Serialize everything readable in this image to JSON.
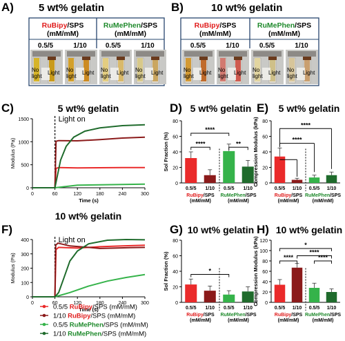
{
  "colors": {
    "red_light": "#ea2a2a",
    "red_dark": "#8b1a1a",
    "green_light": "#35b34a",
    "green_dark": "#1f6b2c",
    "pale_red": "#e88a86",
    "pale_green": "#7fd07a",
    "frame": "#26456e",
    "red_text": "#e01b1b",
    "green_text": "#1f8a2c"
  },
  "panels": {
    "A": {
      "label": "A)",
      "title": "5 wt% gelatin",
      "headers": [
        {
          "dye": "RuBipy",
          "rest": "/SPS",
          "unit": "(mM/mM)"
        },
        {
          "dye": "RuMePhen",
          "rest": "/SPS",
          "unit": "(mM/mM)"
        }
      ],
      "ratios": [
        "0.5/5",
        "1/10",
        "0.5/5",
        "1/10"
      ],
      "photo_labels": {
        "no_light": "No light",
        "light": "Light"
      }
    },
    "B": {
      "label": "B)",
      "title": "10 wt% gelatin",
      "headers": [
        {
          "dye": "RuBipy",
          "rest": "/SPS",
          "unit": "(mM/mM)"
        },
        {
          "dye": "RuMePhen",
          "rest": "/SPS",
          "unit": "(mM/mM)"
        }
      ],
      "ratios": [
        "0.5/5",
        "1/10",
        "0.5/5",
        "1/10"
      ],
      "photo_labels": {
        "no_light": "No light",
        "light": "Light"
      }
    },
    "C": {
      "label": "C)",
      "title": "5 wt% gelatin",
      "annotation": "Light on"
    },
    "D": {
      "label": "D)",
      "title": "5 wt% gelatin",
      "sig_top": "****",
      "sig_left": "****",
      "sig_right": "**"
    },
    "E": {
      "label": "E)",
      "title": "5 wt% gelatin",
      "sig1": "****",
      "sig2": "****"
    },
    "F": {
      "label": "F)",
      "title": "10 wt% gelatin",
      "annotation": "Light on"
    },
    "G": {
      "label": "G)",
      "title": "10 wt% gelatin",
      "sig1": "*"
    },
    "H": {
      "label": "H)",
      "title": "10 wt% gelatin",
      "sig_top": "*",
      "sig_mid": "****",
      "sig_l": "****",
      "sig_r": "****"
    }
  },
  "legend": [
    {
      "ratio": "0.5/5",
      "dye": "RuBipy",
      "rest": "/SPS (mM/mM)",
      "color": "#ea2a2a"
    },
    {
      "ratio": "1/10",
      "dye": "RuBipy",
      "rest": "/SPS (mM/mM)",
      "color": "#8b1a1a"
    },
    {
      "ratio": "0.5/5",
      "dye": "RuMePhen",
      "rest": "/SPS (mM/mM)",
      "color": "#35b34a"
    },
    {
      "ratio": "1/10",
      "dye": "RuMePhen",
      "rest": "/SPS (mM/mM)",
      "color": "#1f6b2c"
    }
  ],
  "group_labels": [
    {
      "dye": "RuBipy",
      "rest": "/SPS",
      "unit": "(mM/mM)"
    },
    {
      "dye": "RuMePhen",
      "rest": "/SPS",
      "unit": "(mM/mM)"
    }
  ],
  "chart_data": [
    {
      "panel": "C",
      "type": "line",
      "title": "5 wt% gelatin",
      "xlabel": "Time (s)",
      "ylabel": "Modulus (Pa)",
      "xlim": [
        0,
        300
      ],
      "ylim": [
        0,
        1500
      ],
      "xticks": [
        0,
        60,
        120,
        180,
        240,
        300
      ],
      "yticks": [
        0,
        500,
        1000,
        1500
      ],
      "series": [
        {
          "name": "0.5/5 RuBipy/SPS (mM/mM)",
          "color": "#ea2a2a",
          "points": [
            [
              0,
              0
            ],
            [
              60,
              0
            ],
            [
              63,
              420
            ],
            [
              70,
              440
            ],
            [
              120,
              430
            ],
            [
              180,
              435
            ],
            [
              240,
              440
            ],
            [
              300,
              440
            ]
          ]
        },
        {
          "name": "1/10 RuBipy/SPS (mM/mM)",
          "color": "#8b1a1a",
          "points": [
            [
              0,
              0
            ],
            [
              60,
              0
            ],
            [
              63,
              1010
            ],
            [
              70,
              1025
            ],
            [
              120,
              1020
            ],
            [
              180,
              1045
            ],
            [
              240,
              1080
            ],
            [
              300,
              1100
            ]
          ]
        },
        {
          "name": "0.5/5 RuMePhen/SPS (mM/mM)",
          "color": "#35b34a",
          "points": [
            [
              0,
              0
            ],
            [
              60,
              0
            ],
            [
              80,
              20
            ],
            [
              120,
              55
            ],
            [
              180,
              65
            ],
            [
              240,
              70
            ],
            [
              300,
              80
            ]
          ]
        },
        {
          "name": "1/10 RuMePhen/SPS (mM/mM)",
          "color": "#1f6b2c",
          "points": [
            [
              0,
              0
            ],
            [
              60,
              0
            ],
            [
              65,
              200
            ],
            [
              75,
              600
            ],
            [
              90,
              900
            ],
            [
              110,
              1100
            ],
            [
              140,
              1230
            ],
            [
              180,
              1300
            ],
            [
              240,
              1350
            ],
            [
              300,
              1370
            ]
          ]
        }
      ]
    },
    {
      "panel": "D",
      "type": "bar",
      "title": "5 wt% gelatin",
      "ylabel": "Sol Fraction (%)",
      "ylim": [
        0,
        80
      ],
      "yticks": [
        0,
        20,
        40,
        60,
        80
      ],
      "categories": [
        "0.5/5",
        "1/10",
        "0.5/5",
        "1/10"
      ],
      "values": [
        32,
        10,
        41,
        21
      ],
      "errors": [
        8,
        7,
        9,
        8
      ],
      "colors": [
        "#ea2a2a",
        "#8b1a1a",
        "#35b34a",
        "#1f6b2c"
      ]
    },
    {
      "panel": "E",
      "type": "bar",
      "title": "5 wt% gelatin",
      "ylabel": "Compression Modulus (kPa)",
      "ylim": [
        0,
        80
      ],
      "yticks": [
        0,
        20,
        40,
        60,
        80
      ],
      "categories": [
        "0.5/5",
        "1/10",
        "0.5/5",
        "1/10"
      ],
      "values": [
        34,
        4,
        7,
        10
      ],
      "errors": [
        11,
        2,
        3,
        4
      ],
      "colors": [
        "#ea2a2a",
        "#8b1a1a",
        "#35b34a",
        "#1f6b2c"
      ]
    },
    {
      "panel": "F",
      "type": "line",
      "title": "10 wt% gelatin",
      "xlabel": "Time (s)",
      "ylabel": "Modulus (Pa)",
      "xlim": [
        0,
        300
      ],
      "ylim": [
        0,
        400
      ],
      "xticks": [
        0,
        60,
        120,
        180,
        240,
        300
      ],
      "yticks": [
        0,
        100,
        200,
        300,
        400
      ],
      "series": [
        {
          "name": "0.5/5 RuBipy/SPS (mM/mM)",
          "color": "#ea2a2a",
          "points": [
            [
              0,
              0
            ],
            [
              60,
              0
            ],
            [
              63,
              330
            ],
            [
              70,
              345
            ],
            [
              120,
              340
            ],
            [
              180,
              350
            ],
            [
              240,
              355
            ],
            [
              300,
              360
            ]
          ]
        },
        {
          "name": "1/10 RuBipy/SPS (mM/mM)",
          "color": "#8b1a1a",
          "points": [
            [
              0,
              0
            ],
            [
              60,
              0
            ],
            [
              62,
              360
            ],
            [
              68,
              375
            ],
            [
              100,
              355
            ],
            [
              150,
              345
            ],
            [
              180,
              338
            ],
            [
              220,
              340
            ],
            [
              260,
              343
            ],
            [
              300,
              345
            ]
          ]
        },
        {
          "name": "0.5/5 RuMePhen/SPS (mM/mM)",
          "color": "#35b34a",
          "points": [
            [
              0,
              0
            ],
            [
              60,
              0
            ],
            [
              100,
              30
            ],
            [
              150,
              75
            ],
            [
              200,
              110
            ],
            [
              250,
              135
            ],
            [
              300,
              155
            ]
          ]
        },
        {
          "name": "1/10 RuMePhen/SPS (mM/mM)",
          "color": "#1f6b2c",
          "points": [
            [
              0,
              0
            ],
            [
              60,
              0
            ],
            [
              70,
              30
            ],
            [
              85,
              140
            ],
            [
              100,
              250
            ],
            [
              120,
              320
            ],
            [
              150,
              370
            ],
            [
              200,
              395
            ],
            [
              250,
              400
            ],
            [
              300,
              398
            ]
          ]
        }
      ]
    },
    {
      "panel": "G",
      "type": "bar",
      "title": "10 wt% gelatin",
      "ylabel": "Sol Fraction (%)",
      "ylim": [
        0,
        80
      ],
      "yticks": [
        0,
        20,
        40,
        60,
        80
      ],
      "categories": [
        "0.5/5",
        "1/10",
        "0.5/5",
        "1/10"
      ],
      "values": [
        23,
        15,
        10,
        14
      ],
      "errors": [
        7,
        6,
        5,
        6
      ],
      "colors": [
        "#ea2a2a",
        "#8b1a1a",
        "#35b34a",
        "#1f6b2c"
      ]
    },
    {
      "panel": "H",
      "type": "bar",
      "title": "10 wt% gelatin",
      "ylabel": "Compression Modulus (kPa)",
      "ylim": [
        0,
        120
      ],
      "yticks": [
        0,
        20,
        40,
        60,
        80,
        100,
        120
      ],
      "categories": [
        "0.5/5",
        "1/10",
        "0.5/5",
        "1/10"
      ],
      "values": [
        34,
        67,
        28,
        20
      ],
      "errors": [
        10,
        8,
        9,
        6
      ],
      "colors": [
        "#ea2a2a",
        "#8b1a1a",
        "#35b34a",
        "#1f6b2c"
      ]
    }
  ]
}
